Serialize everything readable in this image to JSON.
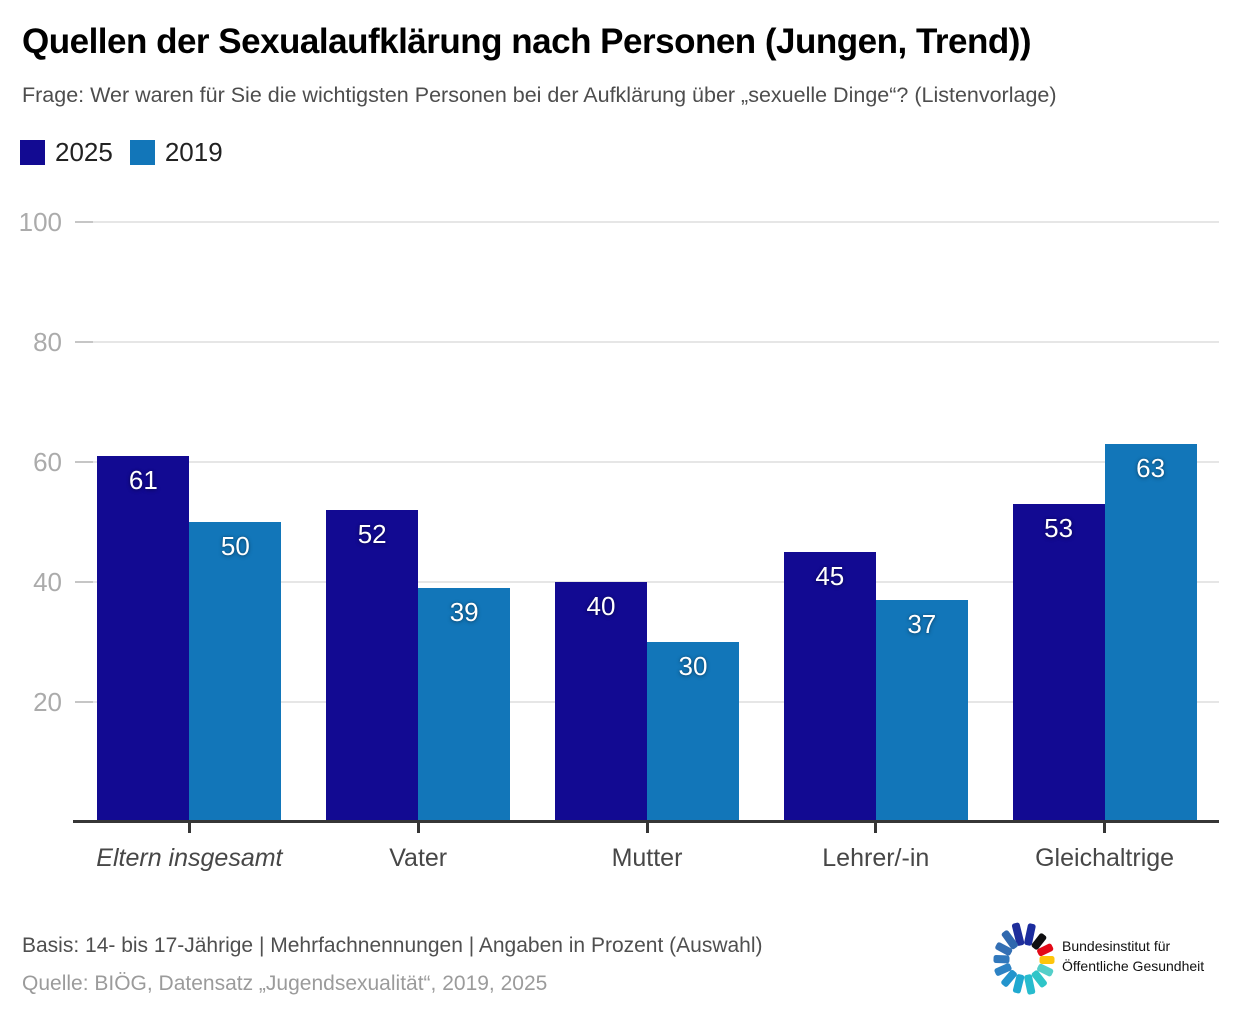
{
  "title": "Quellen der Sexualaufklärung nach Personen (Jungen, Trend))",
  "subtitle": "Frage: Wer waren für Sie die wichtigsten Personen bei der Aufklärung über „sexuelle Dinge“? (Listenvorlage)",
  "legend": {
    "items": [
      {
        "label": "2025",
        "color": "#120a92"
      },
      {
        "label": "2019",
        "color": "#1276b9"
      }
    ]
  },
  "chart_data": {
    "type": "bar",
    "title": "Quellen der Sexualaufklärung nach Personen (Jungen, Trend))",
    "categories": [
      "Eltern insgesamt",
      "Vater",
      "Mutter",
      "Lehrer/-in",
      "Gleichaltrige"
    ],
    "categories_italic": [
      true,
      false,
      false,
      false,
      false
    ],
    "series": [
      {
        "name": "2025",
        "color": "#120a92",
        "values": [
          61,
          52,
          40,
          45,
          53
        ]
      },
      {
        "name": "2019",
        "color": "#1276b9",
        "values": [
          50,
          39,
          30,
          37,
          63
        ]
      }
    ],
    "xlabel": "",
    "ylabel": "",
    "ylim": [
      0,
      100
    ],
    "yticks": [
      20,
      40,
      60,
      80,
      100
    ],
    "grid": true,
    "legend_position": "top-left",
    "value_labels": "inside-top"
  },
  "footer": {
    "basis": "Basis: 14- bis 17-Jährige | Mehrfachnennungen | Angaben in Prozent (Auswahl)",
    "quelle": "Quelle: BIÖG, Datensatz „Jugendsexualität“, 2019, 2025"
  },
  "logo": {
    "name": "biog-logo",
    "text_line1": "Bundesinstitut für",
    "text_line2": "Öffentliche Gesundheit",
    "petals": [
      {
        "angle": -14,
        "color": "#1f2e9b",
        "len": 23
      },
      {
        "angle": 12,
        "color": "#1b2c9e",
        "len": 22
      },
      {
        "angle": 38,
        "color": "#0e0e10",
        "len": 17
      },
      {
        "angle": 64,
        "color": "#e30917",
        "len": 16
      },
      {
        "angle": 90,
        "color": "#fec50b",
        "len": 15
      },
      {
        "angle": 116,
        "color": "#54cfc9",
        "len": 16
      },
      {
        "angle": 142,
        "color": "#2fc5c8",
        "len": 18
      },
      {
        "angle": 168,
        "color": "#27bcce",
        "len": 20
      },
      {
        "angle": 194,
        "color": "#20a9d0",
        "len": 19
      },
      {
        "angle": 220,
        "color": "#2394cd",
        "len": 18
      },
      {
        "angle": 246,
        "color": "#2c82c4",
        "len": 17
      },
      {
        "angle": 272,
        "color": "#3178bc",
        "len": 16
      },
      {
        "angle": 298,
        "color": "#336fb4",
        "len": 17
      },
      {
        "angle": 324,
        "color": "#3068ae",
        "len": 20
      }
    ]
  },
  "style_colors": {
    "grid": "#e6e6e6",
    "grid_tick": "#c6c6c6",
    "axis": "#363636",
    "axis_label": "#ababab",
    "category_label": "#474747",
    "value_label": "#ffffff"
  }
}
